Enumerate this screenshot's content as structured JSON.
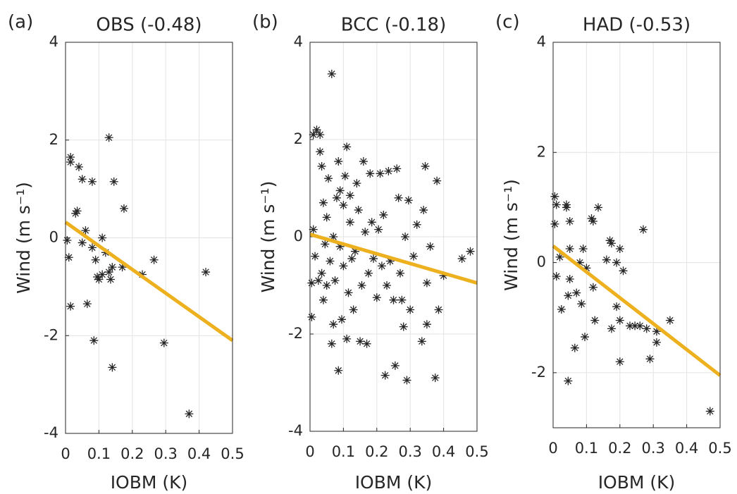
{
  "chart_data": [
    {
      "type": "scatter",
      "panel_label": "(a)",
      "title": "OBS  (-0.48)",
      "xlabel": "IOBM  (K)",
      "ylabel": "Wind (m s⁻¹)",
      "color": "#262626",
      "grid": true,
      "xlim": [
        0,
        0.5
      ],
      "ylim": [
        -4,
        4
      ],
      "xticks": [
        0,
        0.1,
        0.2,
        0.3,
        0.4,
        0.5
      ],
      "yticks": [
        -4,
        -2,
        0,
        2,
        4
      ],
      "x": [
        0.005,
        0.015,
        0.015,
        0.01,
        0.015,
        0.03,
        0.035,
        0.04,
        0.05,
        0.05,
        0.06,
        0.065,
        0.08,
        0.08,
        0.085,
        0.09,
        0.095,
        0.1,
        0.11,
        0.11,
        0.12,
        0.13,
        0.13,
        0.135,
        0.14,
        0.14,
        0.145,
        0.17,
        0.175,
        0.23,
        0.265,
        0.295,
        0.37,
        0.42
      ],
      "values": [
        -0.05,
        1.65,
        1.55,
        -0.4,
        -1.4,
        0.5,
        0.55,
        1.45,
        1.2,
        -0.1,
        0.15,
        -1.35,
        1.15,
        -0.2,
        -2.1,
        -0.45,
        -0.8,
        -0.85,
        -0.75,
        0.0,
        -0.3,
        2.05,
        -0.7,
        -0.85,
        -0.6,
        -2.65,
        1.15,
        -0.6,
        0.6,
        -0.75,
        -0.45,
        -2.15,
        -3.6,
        -0.7
      ],
      "fit": {
        "color": "#EDB120",
        "x": [
          0,
          0.5
        ],
        "values": [
          0.32,
          -2.1
        ]
      }
    },
    {
      "type": "scatter",
      "panel_label": "(b)",
      "title": "BCC  (-0.18)",
      "xlabel": "IOBM  (K)",
      "ylabel": "Wind (m s⁻¹)",
      "color": "#262626",
      "grid": true,
      "xlim": [
        0,
        0.5
      ],
      "ylim": [
        -4,
        4
      ],
      "xticks": [
        0,
        0.1,
        0.2,
        0.3,
        0.4,
        0.5
      ],
      "yticks": [
        -4,
        -2,
        0,
        2,
        4
      ],
      "x": [
        0.005,
        0.005,
        0.01,
        0.01,
        0.015,
        0.02,
        0.025,
        0.03,
        0.03,
        0.035,
        0.035,
        0.04,
        0.04,
        0.045,
        0.05,
        0.05,
        0.055,
        0.06,
        0.065,
        0.065,
        0.07,
        0.07,
        0.075,
        0.08,
        0.085,
        0.085,
        0.09,
        0.09,
        0.095,
        0.1,
        0.1,
        0.105,
        0.11,
        0.11,
        0.115,
        0.12,
        0.12,
        0.125,
        0.13,
        0.135,
        0.14,
        0.145,
        0.15,
        0.155,
        0.16,
        0.165,
        0.17,
        0.175,
        0.18,
        0.185,
        0.19,
        0.2,
        0.205,
        0.21,
        0.215,
        0.22,
        0.225,
        0.23,
        0.235,
        0.24,
        0.25,
        0.255,
        0.26,
        0.265,
        0.27,
        0.275,
        0.28,
        0.285,
        0.29,
        0.295,
        0.3,
        0.31,
        0.32,
        0.335,
        0.34,
        0.345,
        0.35,
        0.35,
        0.36,
        0.375,
        0.38,
        0.385,
        0.4,
        0.455,
        0.48
      ],
      "values": [
        -1.65,
        -0.95,
        0.15,
        2.1,
        -0.4,
        2.2,
        -0.9,
        1.75,
        2.1,
        1.45,
        -0.75,
        -1.3,
        0.7,
        -0.15,
        0.4,
        -1.0,
        1.2,
        -0.5,
        3.35,
        -2.2,
        -1.8,
        0.0,
        -0.9,
        0.8,
        1.55,
        -2.75,
        -0.2,
        0.95,
        -1.7,
        0.65,
        -0.6,
        1.25,
        1.85,
        -2.1,
        -1.15,
        0.3,
        0.85,
        -0.45,
        -1.5,
        -0.3,
        1.1,
        0.55,
        -2.15,
        -1.0,
        1.55,
        0.1,
        -2.2,
        -0.75,
        1.3,
        0.3,
        -0.45,
        -1.25,
        0.15,
        1.3,
        -0.6,
        0.45,
        -2.85,
        -1.0,
        1.35,
        -0.5,
        -1.3,
        -2.65,
        1.4,
        0.8,
        -0.75,
        -1.3,
        -1.85,
        0.0,
        -2.95,
        0.75,
        -1.5,
        -0.4,
        0.25,
        -2.15,
        0.55,
        1.45,
        -1.8,
        -0.95,
        -0.2,
        -2.9,
        1.15,
        -1.5,
        -0.8,
        -0.45,
        -0.3
      ],
      "fit": {
        "color": "#EDB120",
        "x": [
          0,
          0.5
        ],
        "values": [
          0.05,
          -0.95
        ]
      }
    },
    {
      "type": "scatter",
      "panel_label": "(c)",
      "title": "HAD (-0.53)",
      "xlabel": "IOBM  (K)",
      "ylabel": "Wind (m s⁻¹)",
      "color": "#262626",
      "grid": true,
      "xlim": [
        0,
        0.5
      ],
      "ylim": [
        -3,
        4
      ],
      "xticks": [
        0,
        0.1,
        0.2,
        0.3,
        0.4,
        0.5
      ],
      "yticks": [
        -2,
        0,
        2,
        4
      ],
      "x": [
        0.005,
        0.01,
        0.005,
        0.01,
        0.02,
        0.025,
        0.04,
        0.04,
        0.045,
        0.045,
        0.05,
        0.05,
        0.05,
        0.065,
        0.07,
        0.08,
        0.085,
        0.09,
        0.095,
        0.1,
        0.115,
        0.12,
        0.12,
        0.125,
        0.135,
        0.16,
        0.17,
        0.175,
        0.175,
        0.19,
        0.19,
        0.2,
        0.2,
        0.2,
        0.21,
        0.23,
        0.245,
        0.26,
        0.27,
        0.28,
        0.29,
        0.31,
        0.31,
        0.35,
        0.47
      ],
      "values": [
        1.2,
        1.05,
        0.7,
        -0.25,
        0.1,
        -0.85,
        1.05,
        1.0,
        -0.6,
        -2.15,
        0.75,
        -0.3,
        0.25,
        -1.55,
        -0.55,
        0.0,
        -0.75,
        0.25,
        -1.35,
        -0.1,
        0.8,
        0.75,
        -0.45,
        -1.05,
        1.0,
        0.05,
        0.4,
        0.35,
        -1.2,
        0.0,
        -0.8,
        -1.05,
        -1.8,
        0.25,
        -0.15,
        -1.15,
        -1.15,
        -1.15,
        0.6,
        -1.2,
        -1.75,
        -1.45,
        -1.25,
        -1.05,
        -2.7
      ],
      "fit": {
        "color": "#EDB120",
        "x": [
          0,
          0.5
        ],
        "values": [
          0.3,
          -2.05
        ]
      }
    }
  ]
}
